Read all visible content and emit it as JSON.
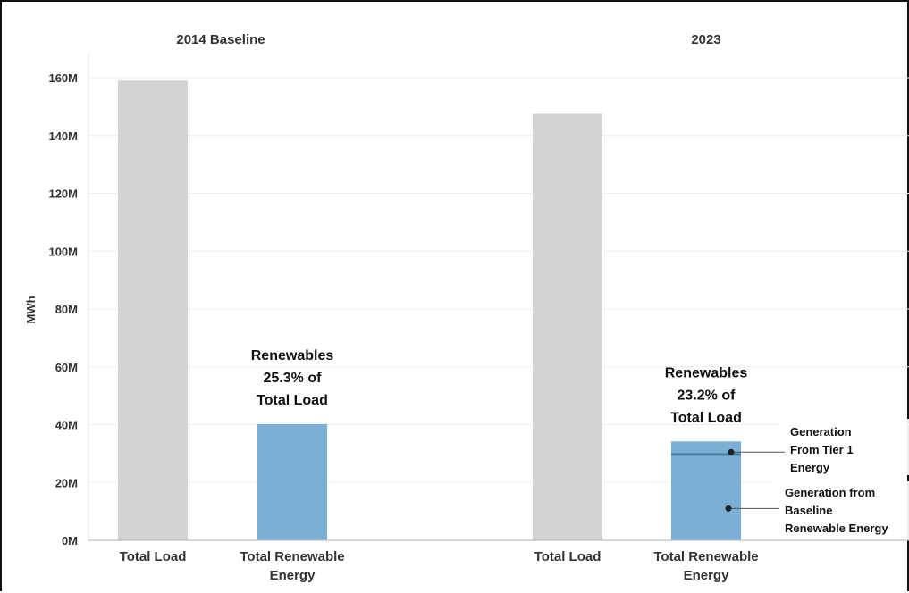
{
  "chart_data": {
    "type": "bar",
    "ylabel": "MWh",
    "ylim": [
      0,
      160000000
    ],
    "yticks": [
      {
        "value": 0,
        "label": "0M"
      },
      {
        "value": 20000000,
        "label": "20M"
      },
      {
        "value": 40000000,
        "label": "40M"
      },
      {
        "value": 60000000,
        "label": "60M"
      },
      {
        "value": 80000000,
        "label": "80M"
      },
      {
        "value": 100000000,
        "label": "100M"
      },
      {
        "value": 120000000,
        "label": "120M"
      },
      {
        "value": 140000000,
        "label": "140M"
      },
      {
        "value": 160000000,
        "label": "160M"
      }
    ],
    "grid": true,
    "colors": {
      "total_load": "#d3d3d3",
      "renewable": "#7bafd6",
      "tier1_line": "#4a7fa6"
    },
    "panels": [
      {
        "title": "2014 Baseline",
        "categories": [
          {
            "label_lines": [
              "Total Load"
            ],
            "value": 159000000,
            "kind": "total_load"
          },
          {
            "label_lines": [
              "Total Renewable",
              "Energy"
            ],
            "value": 40200000,
            "kind": "renewable"
          }
        ],
        "share_label": [
          "Renewables",
          "25.3% of",
          "Total Load"
        ]
      },
      {
        "title": "2023",
        "categories": [
          {
            "label_lines": [
              "Total Load"
            ],
            "value": 147500000,
            "kind": "total_load"
          },
          {
            "label_lines": [
              "Total Renewable",
              "Energy"
            ],
            "value": 34200000,
            "kind": "renewable",
            "components": [
              {
                "name": "Generation from Baseline Renewable Energy",
                "value": 29700000
              },
              {
                "name": "Generation From Tier 1 Energy",
                "value": 4500000
              }
            ]
          }
        ],
        "share_label": [
          "Renewables",
          "23.2% of",
          "Total Load"
        ],
        "annotations": [
          {
            "lines": [
              "Generation",
              "From Tier 1",
              "Energy"
            ],
            "target_value": 30500000
          },
          {
            "lines": [
              "Generation from",
              "Baseline",
              "Renewable Energy"
            ],
            "target_value": 11000000
          }
        ]
      }
    ]
  }
}
